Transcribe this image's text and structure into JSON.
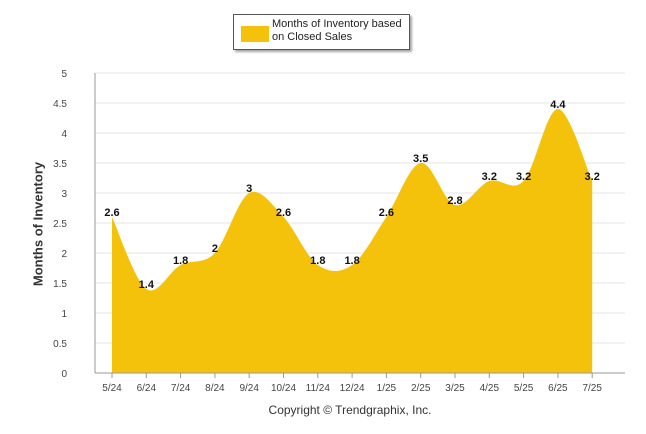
{
  "chart_data": {
    "type": "area",
    "title": "",
    "xlabel": "",
    "ylabel": "Months of Inventory",
    "categories": [
      "5/24",
      "6/24",
      "7/24",
      "8/24",
      "9/24",
      "10/24",
      "11/24",
      "12/24",
      "1/25",
      "2/25",
      "3/25",
      "4/25",
      "5/25",
      "6/25",
      "7/25"
    ],
    "series": [
      {
        "name": "Months of Inventory based on Closed Sales",
        "values": [
          2.6,
          1.4,
          1.8,
          2,
          3,
          2.6,
          1.8,
          1.8,
          2.6,
          3.5,
          2.8,
          3.2,
          3.2,
          4.4,
          3.2
        ],
        "labels": [
          "2.6",
          "1.4",
          "1.8",
          "2",
          "3",
          "2.6",
          "1.8",
          "1.8",
          "2.6",
          "3.5",
          "2.8",
          "3.2",
          "3.2",
          "4.4",
          "3.2"
        ],
        "color": "#f5c20b"
      }
    ],
    "yticks": [
      "0",
      "0.5",
      "1",
      "1.5",
      "2",
      "2.5",
      "3",
      "3.5",
      "4",
      "4.5",
      "5"
    ],
    "ylim": [
      0,
      5
    ],
    "grid": true,
    "legend_position": "top-center"
  },
  "legend": {
    "label": "Months of Inventory based on Closed Sales"
  },
  "footer": {
    "copyright": "Copyright © Trendgraphix, Inc."
  },
  "colors": {
    "area": "#f5c20b",
    "grid": "#e6e6e6",
    "axis": "#999999"
  }
}
